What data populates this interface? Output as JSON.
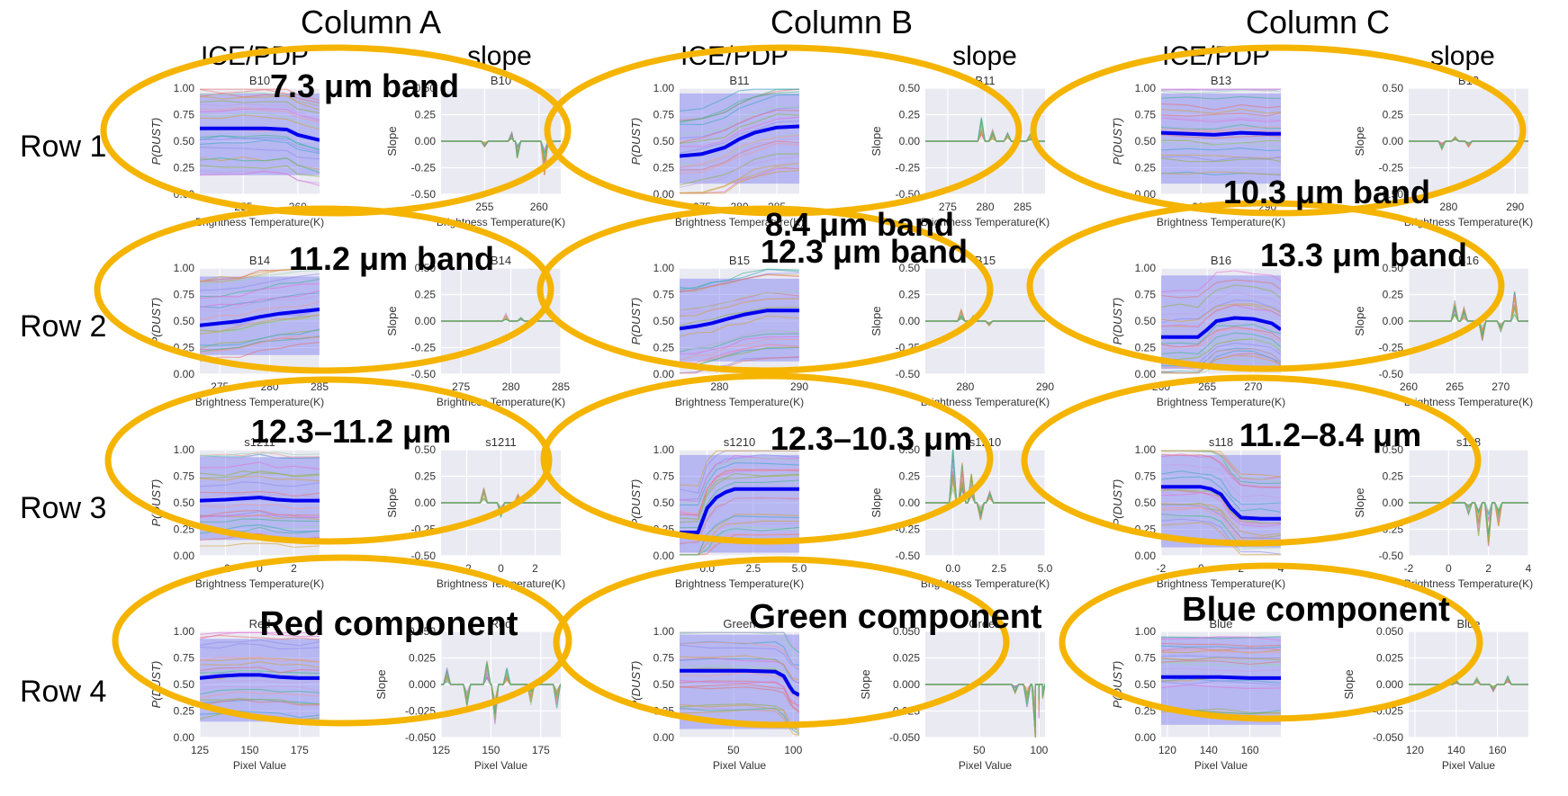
{
  "column_headers": [
    "Column A",
    "Column B",
    "Column C"
  ],
  "row_headers": [
    "Row 1",
    "Row 2",
    "Row 3",
    "Row 4"
  ],
  "sub_headers": {
    "ice_pdp": "ICE/PDP",
    "slope": "slope"
  },
  "band_labels": [
    "7.3 μm band",
    "8.4 μm band",
    "10.3 μm band",
    "11.2 μm band",
    "12.3 μm band",
    "13.3 μm band",
    "12.3–11.2 μm",
    "12.3–10.3 μm",
    "11.2–8.4 μm",
    "Red component",
    "Green component",
    "Blue component"
  ],
  "colors": {
    "ellipse": "#f5b400",
    "panel_bg": "#eaeaf2",
    "grid": "#ffffff",
    "pdp_line": "#0000ee",
    "ci_band": "#7b7bf0",
    "ice_palette": [
      "#e5736f",
      "#d4a13a",
      "#8fb33a",
      "#3fb58a",
      "#3aa7c8",
      "#8d8ef0",
      "#e46fd6",
      "#f29a9a",
      "#9ad4b0",
      "#c7a0e6"
    ]
  },
  "chart_data": [
    {
      "id": "A1",
      "row": 0,
      "col": 0,
      "type": "line",
      "title": "B10",
      "xlabel": "Brightness Temperature(K)",
      "ylabel": "P(DUST)",
      "xlim": [
        251,
        262
      ],
      "ylim": [
        0,
        1
      ],
      "xticks": [
        255,
        260
      ],
      "yticks": [
        0,
        0.25,
        0.5,
        0.75,
        1.0
      ],
      "pdp": {
        "x": [
          251,
          253,
          255,
          257,
          259,
          260,
          262
        ],
        "y": [
          0.62,
          0.62,
          0.62,
          0.62,
          0.61,
          0.56,
          0.51
        ]
      },
      "ci": [
        0.18,
        0.95
      ]
    },
    {
      "id": "A1s",
      "row": 0,
      "col": 0,
      "type": "line",
      "title": "B10",
      "xlabel": "Brightness Temperature(K)",
      "ylabel": "Slope",
      "xlim": [
        251,
        262
      ],
      "ylim": [
        -0.5,
        0.5
      ],
      "xticks": [
        255,
        260
      ],
      "yticks": [
        -0.5,
        -0.25,
        0,
        0.25,
        0.5
      ],
      "slope": true,
      "spikes": [
        [
          255,
          -0.05
        ],
        [
          257.5,
          0.08
        ],
        [
          258,
          -0.15
        ],
        [
          260.5,
          -0.3
        ]
      ]
    },
    {
      "id": "B1",
      "row": 0,
      "col": 1,
      "type": "line",
      "title": "B11",
      "xlabel": "Brightness Temperature(K)",
      "ylabel": "P(DUST)",
      "xlim": [
        272,
        288
      ],
      "ylim": [
        0,
        1
      ],
      "xticks": [
        275,
        280,
        285
      ],
      "yticks": [
        0,
        0.25,
        0.5,
        0.75,
        1.0
      ],
      "pdp": {
        "x": [
          272,
          275,
          278,
          280,
          282,
          285,
          288
        ],
        "y": [
          0.36,
          0.38,
          0.44,
          0.52,
          0.58,
          0.63,
          0.64
        ]
      },
      "ci": [
        0.1,
        0.95
      ]
    },
    {
      "id": "B1s",
      "row": 0,
      "col": 1,
      "type": "line",
      "title": "B11",
      "xlabel": "Brightness Temperature(K)",
      "ylabel": "Slope",
      "xlim": [
        272,
        288
      ],
      "ylim": [
        -0.5,
        0.5
      ],
      "xticks": [
        275,
        280,
        285
      ],
      "yticks": [
        -0.5,
        -0.25,
        0,
        0.25,
        0.5
      ],
      "slope": true,
      "spikes": [
        [
          279.5,
          0.22
        ],
        [
          281,
          0.1
        ],
        [
          283,
          0.08
        ],
        [
          286,
          0.06
        ]
      ]
    },
    {
      "id": "C1",
      "row": 0,
      "col": 2,
      "type": "line",
      "title": "B13",
      "xlabel": "Brightness Temperature(K)",
      "ylabel": "P(DUST)",
      "xlim": [
        274,
        292
      ],
      "ylim": [
        0,
        1
      ],
      "xticks": [
        280,
        290
      ],
      "yticks": [
        0,
        0.25,
        0.5,
        0.75,
        1.0
      ],
      "pdp": {
        "x": [
          274,
          278,
          282,
          286,
          290,
          292
        ],
        "y": [
          0.58,
          0.57,
          0.56,
          0.58,
          0.57,
          0.57
        ]
      },
      "ci": [
        0.1,
        0.95
      ]
    },
    {
      "id": "C1s",
      "row": 0,
      "col": 2,
      "type": "line",
      "title": "B13",
      "xlabel": "Brightness Temperature(K)",
      "ylabel": "Slope",
      "xlim": [
        274,
        292
      ],
      "ylim": [
        -0.5,
        0.5
      ],
      "xticks": [
        280,
        290
      ],
      "yticks": [
        -0.5,
        -0.25,
        0,
        0.25,
        0.5
      ],
      "slope": true,
      "spikes": [
        [
          279,
          -0.08
        ],
        [
          281,
          0.05
        ],
        [
          283,
          -0.05
        ]
      ]
    },
    {
      "id": "A2",
      "row": 1,
      "col": 0,
      "type": "line",
      "title": "B14",
      "xlabel": "Brightness Temperature(K)",
      "ylabel": "P(DUST)",
      "xlim": [
        273,
        285
      ],
      "ylim": [
        0,
        1
      ],
      "xticks": [
        275,
        280,
        285
      ],
      "yticks": [
        0,
        0.25,
        0.5,
        0.75,
        1.0
      ],
      "pdp": {
        "x": [
          273,
          275,
          277,
          279,
          281,
          283,
          285
        ],
        "y": [
          0.46,
          0.48,
          0.5,
          0.54,
          0.57,
          0.59,
          0.61
        ]
      },
      "ci": [
        0.18,
        0.92
      ]
    },
    {
      "id": "A2s",
      "row": 1,
      "col": 0,
      "type": "line",
      "title": "B14",
      "xlabel": "Brightness Temperature(K)",
      "ylabel": "Slope",
      "xlim": [
        273,
        285
      ],
      "ylim": [
        -0.5,
        0.5
      ],
      "xticks": [
        275,
        280,
        285
      ],
      "yticks": [
        -0.5,
        -0.25,
        0,
        0.25,
        0.5
      ],
      "slope": true,
      "spikes": [
        [
          279.5,
          0.07
        ],
        [
          281,
          0.04
        ]
      ]
    },
    {
      "id": "B2",
      "row": 1,
      "col": 1,
      "type": "line",
      "title": "B15",
      "xlabel": "Brightness Temperature(K)",
      "ylabel": "P(DUST)",
      "xlim": [
        275,
        290
      ],
      "ylim": [
        0,
        1
      ],
      "xticks": [
        280,
        290
      ],
      "yticks": [
        0,
        0.25,
        0.5,
        0.75,
        1.0
      ],
      "pdp": {
        "x": [
          275,
          277,
          279,
          281,
          283,
          286,
          290
        ],
        "y": [
          0.43,
          0.45,
          0.48,
          0.52,
          0.56,
          0.6,
          0.6
        ]
      },
      "ci": [
        0.12,
        0.9
      ]
    },
    {
      "id": "B2s",
      "row": 1,
      "col": 1,
      "type": "line",
      "title": "B15",
      "xlabel": "Brightness Temperature(K)",
      "ylabel": "Slope",
      "xlim": [
        275,
        290
      ],
      "ylim": [
        -0.5,
        0.5
      ],
      "xticks": [
        280,
        290
      ],
      "yticks": [
        -0.5,
        -0.25,
        0,
        0.25,
        0.5
      ],
      "slope": true,
      "spikes": [
        [
          279.5,
          0.1
        ],
        [
          281,
          0.05
        ],
        [
          283,
          -0.04
        ]
      ]
    },
    {
      "id": "C2",
      "row": 1,
      "col": 2,
      "type": "line",
      "title": "B16",
      "xlabel": "Brightness Temperature(K)",
      "ylabel": "P(DUST)",
      "xlim": [
        260,
        273
      ],
      "ylim": [
        0,
        1
      ],
      "xticks": [
        260,
        265,
        270
      ],
      "yticks": [
        0,
        0.25,
        0.5,
        0.75,
        1.0
      ],
      "pdp": {
        "x": [
          260,
          262,
          264,
          265,
          266,
          268,
          270,
          272,
          273
        ],
        "y": [
          0.35,
          0.35,
          0.35,
          0.42,
          0.5,
          0.53,
          0.52,
          0.48,
          0.42
        ]
      },
      "ci": [
        0.05,
        0.93
      ]
    },
    {
      "id": "C2s",
      "row": 1,
      "col": 2,
      "type": "line",
      "title": "B16",
      "xlabel": "Brightness Temperature(K)",
      "ylabel": "Slope",
      "xlim": [
        260,
        273
      ],
      "ylim": [
        -0.5,
        0.5
      ],
      "xticks": [
        260,
        265,
        270
      ],
      "yticks": [
        -0.5,
        -0.25,
        0,
        0.25,
        0.5
      ],
      "slope": true,
      "spikes": [
        [
          265,
          0.22
        ],
        [
          266,
          0.12
        ],
        [
          268,
          -0.18
        ],
        [
          270,
          -0.1
        ],
        [
          271.5,
          0.26
        ]
      ]
    },
    {
      "id": "A3",
      "row": 2,
      "col": 0,
      "type": "line",
      "title": "s1211",
      "xlabel": "Brightness Temperature(K)",
      "ylabel": "P(DUST)",
      "xlim": [
        -3.5,
        3.5
      ],
      "ylim": [
        0,
        1
      ],
      "xticks": [
        -2,
        0,
        2
      ],
      "yticks": [
        0,
        0.25,
        0.5,
        0.75,
        1.0
      ],
      "pdp": {
        "x": [
          -3.5,
          -2,
          -1,
          0,
          1,
          2,
          3.5
        ],
        "y": [
          0.52,
          0.53,
          0.54,
          0.55,
          0.53,
          0.52,
          0.52
        ]
      },
      "ci": [
        0.15,
        0.93
      ]
    },
    {
      "id": "A3s",
      "row": 2,
      "col": 0,
      "type": "line",
      "title": "s1211",
      "xlabel": "Brightness Temperature(K)",
      "ylabel": "Slope",
      "xlim": [
        -3.5,
        3.5
      ],
      "ylim": [
        -0.5,
        0.5
      ],
      "xticks": [
        -2,
        0,
        2
      ],
      "yticks": [
        -0.5,
        -0.25,
        0,
        0.25,
        0.5
      ],
      "slope": true,
      "spikes": [
        [
          -1,
          0.14
        ],
        [
          0,
          -0.12
        ],
        [
          1,
          0.08
        ]
      ]
    },
    {
      "id": "B3",
      "row": 2,
      "col": 1,
      "type": "line",
      "title": "s1210",
      "xlabel": "Brightness Temperature(K)",
      "ylabel": "P(DUST)",
      "xlim": [
        -1.5,
        5
      ],
      "ylim": [
        0,
        1
      ],
      "xticks": [
        0.0,
        2.5,
        5.0
      ],
      "yticks": [
        0,
        0.25,
        0.5,
        0.75,
        1.0
      ],
      "pdp": {
        "x": [
          -1.5,
          -0.5,
          0,
          0.5,
          1,
          1.5,
          3,
          5
        ],
        "y": [
          0.22,
          0.22,
          0.45,
          0.55,
          0.6,
          0.63,
          0.63,
          0.63
        ]
      },
      "ci": [
        0.03,
        0.95
      ]
    },
    {
      "id": "B3s",
      "row": 2,
      "col": 1,
      "type": "line",
      "title": "s1210",
      "xlabel": "Brightness Temperature(K)",
      "ylabel": "Slope",
      "xlim": [
        -1.5,
        5
      ],
      "ylim": [
        -0.5,
        0.5
      ],
      "xticks": [
        0.0,
        2.5,
        5.0
      ],
      "yticks": [
        -0.5,
        -0.25,
        0,
        0.25,
        0.5
      ],
      "slope": true,
      "spikes": [
        [
          0,
          0.48
        ],
        [
          0.5,
          0.35
        ],
        [
          1,
          0.25
        ],
        [
          1.5,
          -0.15
        ],
        [
          2,
          0.1
        ]
      ]
    },
    {
      "id": "C3",
      "row": 2,
      "col": 2,
      "type": "line",
      "title": "s118",
      "xlabel": "Brightness Temperature(K)",
      "ylabel": "P(DUST)",
      "xlim": [
        -2,
        4
      ],
      "ylim": [
        0,
        1
      ],
      "xticks": [
        -2,
        0,
        2,
        4
      ],
      "yticks": [
        0,
        0.25,
        0.5,
        0.75,
        1.0
      ],
      "pdp": {
        "x": [
          -2,
          -1,
          0,
          0.5,
          1,
          1.5,
          2,
          3,
          4
        ],
        "y": [
          0.65,
          0.65,
          0.65,
          0.63,
          0.58,
          0.45,
          0.36,
          0.35,
          0.35
        ]
      },
      "ci": [
        0.08,
        0.95
      ]
    },
    {
      "id": "C3s",
      "row": 2,
      "col": 2,
      "type": "line",
      "title": "s118",
      "xlabel": "Brightness Temperature(K)",
      "ylabel": "Slope",
      "xlim": [
        -2,
        4
      ],
      "ylim": [
        -0.5,
        0.5
      ],
      "xticks": [
        -2,
        0,
        2,
        4
      ],
      "yticks": [
        -0.5,
        -0.25,
        0,
        0.25,
        0.5
      ],
      "slope": true,
      "spikes": [
        [
          1,
          -0.1
        ],
        [
          1.5,
          -0.3
        ],
        [
          2,
          -0.38
        ],
        [
          2.5,
          -0.2
        ]
      ]
    },
    {
      "id": "A4",
      "row": 3,
      "col": 0,
      "type": "line",
      "title": "Red",
      "xlabel": "Pixel Value",
      "ylabel": "P(DUST)",
      "xlim": [
        125,
        185
      ],
      "ylim": [
        0,
        1
      ],
      "xticks": [
        125,
        150,
        175
      ],
      "yticks": [
        0,
        0.25,
        0.5,
        0.75,
        1.0
      ],
      "pdp": {
        "x": [
          125,
          135,
          145,
          155,
          165,
          175,
          185
        ],
        "y": [
          0.56,
          0.58,
          0.59,
          0.59,
          0.57,
          0.56,
          0.56
        ]
      },
      "ci": [
        0.15,
        0.93
      ]
    },
    {
      "id": "A4s",
      "row": 3,
      "col": 0,
      "type": "line",
      "title": "Red",
      "xlabel": "Pixel Value",
      "ylabel": "Slope",
      "xlim": [
        125,
        185
      ],
      "ylim": [
        -0.05,
        0.05
      ],
      "xticks": [
        125,
        150,
        175
      ],
      "yticks": [
        -0.05,
        -0.025,
        0,
        0.025,
        0.05
      ],
      "slope": true,
      "spikes": [
        [
          128,
          0.015
        ],
        [
          138,
          -0.02
        ],
        [
          148,
          0.02
        ],
        [
          152,
          -0.035
        ],
        [
          158,
          0.015
        ],
        [
          170,
          -0.02
        ],
        [
          183,
          -0.025
        ]
      ]
    },
    {
      "id": "B4",
      "row": 3,
      "col": 1,
      "type": "line",
      "title": "Green",
      "xlabel": "Pixel Value",
      "ylabel": "P(DUST)",
      "xlim": [
        5,
        105
      ],
      "ylim": [
        0,
        1
      ],
      "xticks": [
        50,
        100
      ],
      "yticks": [
        0,
        0.25,
        0.5,
        0.75,
        1.0
      ],
      "pdp": {
        "x": [
          5,
          30,
          60,
          85,
          92,
          97,
          100,
          105
        ],
        "y": [
          0.63,
          0.63,
          0.63,
          0.62,
          0.58,
          0.48,
          0.43,
          0.4
        ]
      },
      "ci": [
        0.08,
        0.97
      ]
    },
    {
      "id": "B4s",
      "row": 3,
      "col": 1,
      "type": "line",
      "title": "Green",
      "xlabel": "Pixel Value",
      "ylabel": "Slope",
      "xlim": [
        5,
        105
      ],
      "ylim": [
        -0.05,
        0.05
      ],
      "xticks": [
        50,
        100
      ],
      "yticks": [
        -0.05,
        -0.025,
        0,
        0.025,
        0.05
      ],
      "slope": true,
      "spikes": [
        [
          80,
          -0.008
        ],
        [
          90,
          -0.02
        ],
        [
          97,
          -0.048
        ],
        [
          100,
          -0.03
        ],
        [
          103,
          -0.015
        ]
      ]
    },
    {
      "id": "C4",
      "row": 3,
      "col": 2,
      "type": "line",
      "title": "Blue",
      "xlabel": "Pixel Value",
      "ylabel": "P(DUST)",
      "xlim": [
        117,
        175
      ],
      "ylim": [
        0,
        1
      ],
      "xticks": [
        120,
        140,
        160
      ],
      "yticks": [
        0,
        0.25,
        0.5,
        0.75,
        1.0
      ],
      "pdp": {
        "x": [
          117,
          130,
          145,
          160,
          175
        ],
        "y": [
          0.57,
          0.57,
          0.57,
          0.56,
          0.56
        ]
      },
      "ci": [
        0.12,
        0.95
      ]
    },
    {
      "id": "C4s",
      "row": 3,
      "col": 2,
      "type": "line",
      "title": "Blue",
      "xlabel": "Pixel Value",
      "ylabel": "Slope",
      "xlim": [
        117,
        175
      ],
      "ylim": [
        -0.05,
        0.05
      ],
      "xticks": [
        120,
        140,
        160
      ],
      "yticks": [
        -0.05,
        -0.025,
        0,
        0.025,
        0.05
      ],
      "slope": true,
      "spikes": [
        [
          140,
          0.004
        ],
        [
          150,
          0.006
        ],
        [
          158,
          -0.006
        ],
        [
          165,
          0.008
        ]
      ]
    }
  ]
}
